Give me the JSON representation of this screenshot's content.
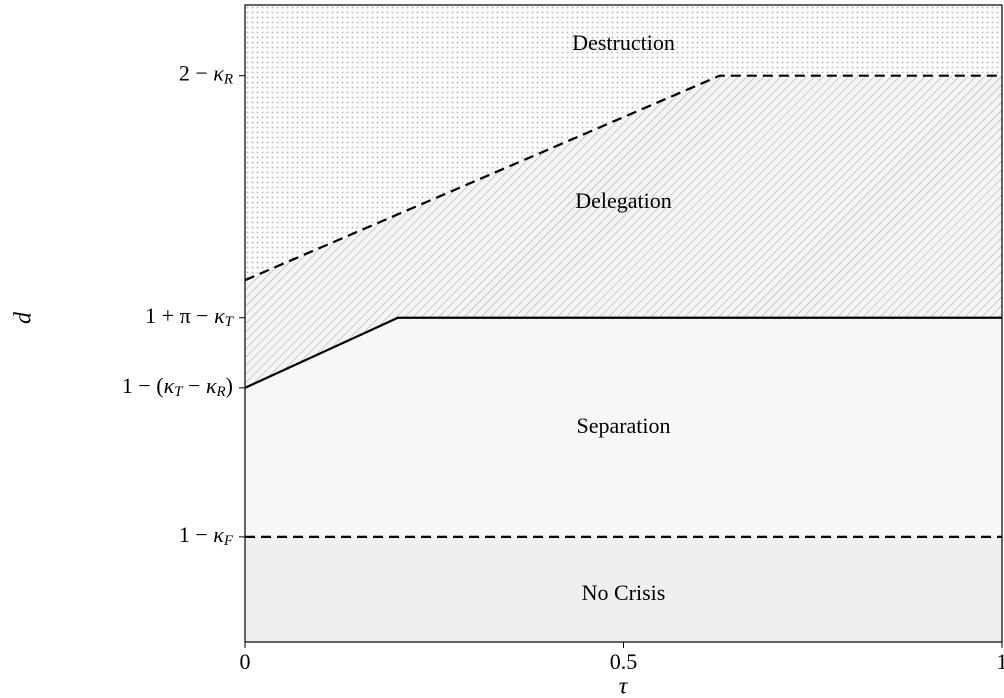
{
  "chart_data": {
    "type": "line",
    "xlabel": "τ",
    "ylabel": "d",
    "xlim": [
      0,
      1
    ],
    "ylim": [
      0,
      1
    ],
    "xticks": [
      0,
      0.5,
      1
    ],
    "yticks": [
      {
        "value": 0.165,
        "label": "1 − κ_F"
      },
      {
        "value": 0.399,
        "label": "1 − (κ_T − κ_R)"
      },
      {
        "value": 0.509,
        "label": "1 + π − κ_T"
      },
      {
        "value": 0.889,
        "label": "2 − κ_R"
      }
    ],
    "grid": false,
    "series": [
      {
        "x": [
          0,
          0.627,
          1
        ],
        "values": [
          0.568,
          0.889,
          0.889
        ],
        "color": "#000000",
        "dash": true
      },
      {
        "x": [
          0,
          0.202,
          1
        ],
        "values": [
          0.399,
          0.509,
          0.509
        ],
        "color": "#000000",
        "dash": false
      },
      {
        "x": [
          0,
          1
        ],
        "values": [
          0.165,
          0.165
        ],
        "color": "#000000",
        "dash": true
      }
    ],
    "regions": [
      {
        "label": "Destruction",
        "fill": "dots"
      },
      {
        "label": "Delegation",
        "fill": "hatch"
      },
      {
        "label": "Separation",
        "fill": "#f7f7f7"
      },
      {
        "label": "No Crisis",
        "fill": "#efefef"
      }
    ]
  }
}
